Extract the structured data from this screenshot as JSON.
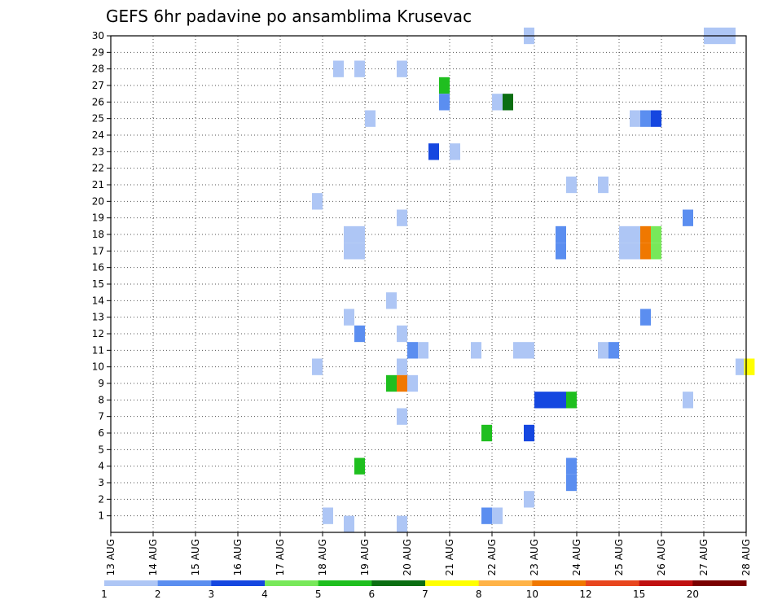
{
  "chart_data": {
    "type": "heatmap",
    "title": "GEFS 6hr padavine po ansamblima Krusevac",
    "xlabel": "",
    "ylabel": "",
    "x_tick_labels": [
      "13 AUG",
      "14 AUG",
      "15 AUG",
      "16 AUG",
      "17 AUG",
      "18 AUG",
      "19 AUG",
      "20 AUG",
      "21 AUG",
      "22 AUG",
      "23 AUG",
      "24 AUG",
      "25 AUG",
      "26 AUG",
      "27 AUG",
      "28 AUG"
    ],
    "x_unit_note": "x in days since 13 AUG 00z, 6-hourly steps",
    "y_tick_labels": [
      "1",
      "2",
      "3",
      "4",
      "5",
      "6",
      "7",
      "8",
      "9",
      "10",
      "11",
      "12",
      "13",
      "14",
      "15",
      "16",
      "17",
      "18",
      "19",
      "20",
      "21",
      "22",
      "23",
      "24",
      "25",
      "26",
      "27",
      "28",
      "29",
      "30"
    ],
    "xlim": [
      0,
      15
    ],
    "ylim": [
      0,
      30
    ],
    "grid": true,
    "legend": {
      "placement": "bottom",
      "labels": [
        "1",
        "2",
        "3",
        "4",
        "5",
        "6",
        "7",
        "8",
        "10",
        "12",
        "15",
        "20"
      ],
      "colors": [
        "#aec6f5",
        "#5b8ef0",
        "#1547e0",
        "#78e85a",
        "#1fbf1f",
        "#0b6e12",
        "#ffff00",
        "#ffb347",
        "#f07800",
        "#e8461e",
        "#c01010",
        "#7a0000"
      ]
    },
    "cells": [
      {
        "m": 30,
        "d": 9.75,
        "c": 1
      },
      {
        "m": 30,
        "d": 14,
        "c": 1
      },
      {
        "m": 30,
        "d": 14.25,
        "c": 1
      },
      {
        "m": 30,
        "d": 14.5,
        "c": 1
      },
      {
        "m": 28,
        "d": 5.25,
        "c": 1
      },
      {
        "m": 28,
        "d": 5.75,
        "c": 1
      },
      {
        "m": 28,
        "d": 6.75,
        "c": 1
      },
      {
        "m": 27,
        "d": 7.75,
        "c": 5
      },
      {
        "m": 26,
        "d": 7.75,
        "c": 2
      },
      {
        "m": 26,
        "d": 9,
        "c": 1
      },
      {
        "m": 26,
        "d": 9.25,
        "c": 6
      },
      {
        "m": 25,
        "d": 6,
        "c": 1
      },
      {
        "m": 25,
        "d": 12.25,
        "c": 1
      },
      {
        "m": 25,
        "d": 12.5,
        "c": 2
      },
      {
        "m": 25,
        "d": 12.75,
        "c": 3
      },
      {
        "m": 23,
        "d": 7.5,
        "c": 3
      },
      {
        "m": 23,
        "d": 8,
        "c": 1
      },
      {
        "m": 21,
        "d": 10.75,
        "c": 1
      },
      {
        "m": 21,
        "d": 11.5,
        "c": 1
      },
      {
        "m": 20,
        "d": 4.75,
        "c": 1
      },
      {
        "m": 19,
        "d": 6.75,
        "c": 1
      },
      {
        "m": 19,
        "d": 13.5,
        "c": 2
      },
      {
        "m": 18,
        "d": 5.5,
        "c": 1
      },
      {
        "m": 18,
        "d": 5.75,
        "c": 1
      },
      {
        "m": 18,
        "d": 10.5,
        "c": 2
      },
      {
        "m": 18,
        "d": 12,
        "c": 1
      },
      {
        "m": 18,
        "d": 12.25,
        "c": 1
      },
      {
        "m": 18,
        "d": 12.5,
        "c": 9
      },
      {
        "m": 18,
        "d": 12.75,
        "c": 4
      },
      {
        "m": 17,
        "d": 5.5,
        "c": 1
      },
      {
        "m": 17,
        "d": 5.75,
        "c": 1
      },
      {
        "m": 17,
        "d": 10.5,
        "c": 2
      },
      {
        "m": 17,
        "d": 12,
        "c": 1
      },
      {
        "m": 17,
        "d": 12.25,
        "c": 1
      },
      {
        "m": 17,
        "d": 12.5,
        "c": 9
      },
      {
        "m": 17,
        "d": 12.75,
        "c": 4
      },
      {
        "m": 14,
        "d": 6.5,
        "c": 1
      },
      {
        "m": 13,
        "d": 5.5,
        "c": 1
      },
      {
        "m": 13,
        "d": 12.5,
        "c": 2
      },
      {
        "m": 12,
        "d": 5.75,
        "c": 2
      },
      {
        "m": 12,
        "d": 6.75,
        "c": 1
      },
      {
        "m": 11,
        "d": 7,
        "c": 2
      },
      {
        "m": 11,
        "d": 7.25,
        "c": 1
      },
      {
        "m": 11,
        "d": 8.5,
        "c": 1
      },
      {
        "m": 11,
        "d": 9.5,
        "c": 1
      },
      {
        "m": 11,
        "d": 9.75,
        "c": 1
      },
      {
        "m": 11,
        "d": 11.5,
        "c": 1
      },
      {
        "m": 11,
        "d": 11.75,
        "c": 2
      },
      {
        "m": 10,
        "d": 4.75,
        "c": 1
      },
      {
        "m": 10,
        "d": 6.75,
        "c": 1
      },
      {
        "m": 10,
        "d": 14.75,
        "c": 1
      },
      {
        "m": 10,
        "d": 14.95,
        "c": 7
      },
      {
        "m": 9,
        "d": 6.5,
        "c": 5
      },
      {
        "m": 9,
        "d": 6.75,
        "c": 9
      },
      {
        "m": 9,
        "d": 7,
        "c": 1
      },
      {
        "m": 8,
        "d": 10,
        "c": 3
      },
      {
        "m": 8,
        "d": 10.25,
        "c": 3
      },
      {
        "m": 8,
        "d": 10.5,
        "c": 3
      },
      {
        "m": 8,
        "d": 10.75,
        "c": 5
      },
      {
        "m": 8,
        "d": 13.5,
        "c": 1
      },
      {
        "m": 7,
        "d": 6.75,
        "c": 1
      },
      {
        "m": 6,
        "d": 8.75,
        "c": 5
      },
      {
        "m": 6,
        "d": 9.75,
        "c": 3
      },
      {
        "m": 4,
        "d": 5.75,
        "c": 5
      },
      {
        "m": 4,
        "d": 10.75,
        "c": 2
      },
      {
        "m": 3,
        "d": 10.75,
        "c": 2
      },
      {
        "m": 2,
        "d": 9.75,
        "c": 1
      },
      {
        "m": 1,
        "d": 5,
        "c": 1
      },
      {
        "m": 1,
        "d": 8.75,
        "c": 2
      },
      {
        "m": 1,
        "d": 9,
        "c": 1
      },
      {
        "m": 0.5,
        "d": 5.5,
        "c": 1
      },
      {
        "m": 0.5,
        "d": 6.75,
        "c": 1
      }
    ]
  }
}
